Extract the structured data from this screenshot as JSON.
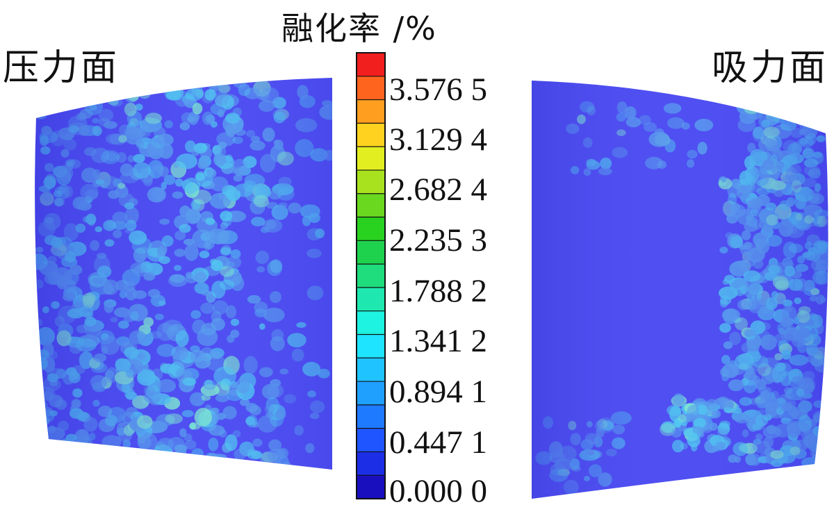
{
  "left_panel": {
    "title": "压力面"
  },
  "right_panel": {
    "title": "吸力面"
  },
  "legend": {
    "title": "融化率 /%",
    "tick_labels": [
      "3.576 5",
      "3.129 4",
      "2.682 4",
      "2.235 3",
      "1.788 2",
      "1.341 2",
      "0.894 1",
      "0.447 1",
      "0.000 0"
    ],
    "min": 0.0,
    "max": 4.0235,
    "levels": 18,
    "colors": [
      "#1a0fbf",
      "#1c2ee6",
      "#1f55ff",
      "#1e7bff",
      "#1fa0ff",
      "#1ec3ff",
      "#1ee4ff",
      "#1ef2e0",
      "#1ee8b0",
      "#1fdc7c",
      "#1fd24e",
      "#28d21f",
      "#6ad81f",
      "#a8e21f",
      "#e2ee1f",
      "#ffd21f",
      "#ff9e1f",
      "#ff641f",
      "#f21f1f"
    ]
  },
  "colors": {
    "base_surface": "#4f4ff2",
    "speckle_light": "#52c8f0",
    "speckle_mid": "#5aa0ee",
    "speckle_hot": "#7ee8d0",
    "frame": "#111111"
  }
}
